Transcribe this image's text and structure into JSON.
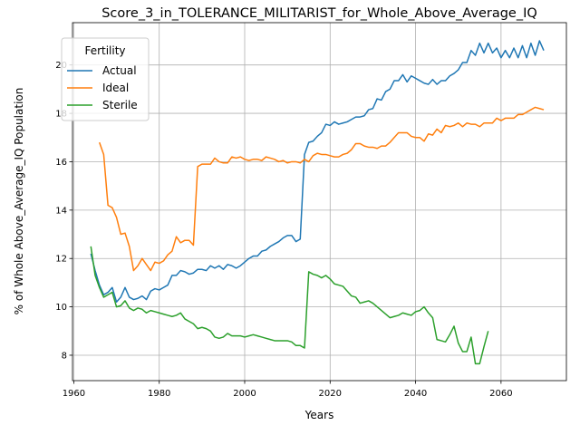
{
  "chart_data": {
    "type": "line",
    "title": "Score_3_in_TOLERANCE_MILITARIST_for_Whole_Above_Average_IQ",
    "xlabel": "Years",
    "ylabel": "% of Whole Above_Average_IQ Population",
    "xlim": [
      1959.7,
      2075.3
    ],
    "ylim": [
      6.95,
      21.75
    ],
    "xticks": [
      1960,
      1980,
      2000,
      2020,
      2040,
      2060
    ],
    "yticks": [
      8,
      10,
      12,
      14,
      16,
      18,
      20
    ],
    "grid": true,
    "legend": {
      "title": "Fertility",
      "placement": "top-left"
    },
    "series": [
      {
        "name": "Actual",
        "color": "#1f77b4",
        "x": [
          1964,
          1965,
          1966,
          1967,
          1968,
          1969,
          1970,
          1971,
          1972,
          1973,
          1974,
          1975,
          1976,
          1977,
          1978,
          1979,
          1980,
          1981,
          1982,
          1983,
          1984,
          1985,
          1986,
          1987,
          1988,
          1989,
          1990,
          1991,
          1992,
          1993,
          1994,
          1995,
          1996,
          1997,
          1998,
          1999,
          2000,
          2001,
          2002,
          2003,
          2004,
          2005,
          2006,
          2007,
          2008,
          2009,
          2010,
          2011,
          2012,
          2013,
          2014,
          2015,
          2016,
          2017,
          2018,
          2019,
          2020,
          2021,
          2022,
          2023,
          2024,
          2025,
          2026,
          2027,
          2028,
          2029,
          2030,
          2031,
          2032,
          2033,
          2034,
          2035,
          2036,
          2037,
          2038,
          2039,
          2040,
          2041,
          2042,
          2043,
          2044,
          2045,
          2046,
          2047,
          2048,
          2049,
          2050,
          2051,
          2052,
          2053,
          2054,
          2055,
          2056,
          2057,
          2058,
          2059,
          2060,
          2061,
          2062,
          2063,
          2064,
          2065,
          2066,
          2067,
          2068,
          2069,
          2070
        ],
        "y": [
          12.2,
          11.5,
          10.9,
          10.5,
          10.6,
          10.8,
          10.2,
          10.4,
          10.8,
          10.4,
          10.3,
          10.35,
          10.45,
          10.3,
          10.65,
          10.75,
          10.7,
          10.8,
          10.9,
          11.3,
          11.3,
          11.5,
          11.45,
          11.35,
          11.4,
          11.55,
          11.55,
          11.5,
          11.7,
          11.6,
          11.7,
          11.55,
          11.75,
          11.7,
          11.6,
          11.7,
          11.85,
          12.0,
          12.1,
          12.1,
          12.3,
          12.35,
          12.5,
          12.6,
          12.7,
          12.85,
          12.95,
          12.95,
          12.7,
          12.8,
          16.3,
          16.8,
          16.85,
          17.05,
          17.2,
          17.55,
          17.5,
          17.65,
          17.55,
          17.6,
          17.65,
          17.75,
          17.85,
          17.85,
          17.9,
          18.15,
          18.2,
          18.6,
          18.55,
          18.9,
          19.0,
          19.35,
          19.35,
          19.6,
          19.3,
          19.55,
          19.45,
          19.35,
          19.25,
          19.2,
          19.4,
          19.2,
          19.35,
          19.35,
          19.55,
          19.65,
          19.8,
          20.1,
          20.1,
          20.6,
          20.4,
          20.9,
          20.5,
          20.9,
          20.5,
          20.7,
          20.3,
          20.6,
          20.3,
          20.7,
          20.3,
          20.8,
          20.3,
          20.9,
          20.4,
          21.0,
          20.6
        ]
      },
      {
        "name": "Ideal",
        "color": "#ff7f0e",
        "x": [
          1966,
          1967,
          1968,
          1969,
          1970,
          1971,
          1972,
          1973,
          1974,
          1975,
          1976,
          1977,
          1978,
          1979,
          1980,
          1981,
          1982,
          1983,
          1984,
          1985,
          1986,
          1987,
          1988,
          1989,
          1990,
          1991,
          1992,
          1993,
          1994,
          1995,
          1996,
          1997,
          1998,
          1999,
          2000,
          2001,
          2002,
          2003,
          2004,
          2005,
          2006,
          2007,
          2008,
          2009,
          2010,
          2011,
          2012,
          2013,
          2014,
          2015,
          2016,
          2017,
          2018,
          2019,
          2020,
          2021,
          2022,
          2023,
          2024,
          2025,
          2026,
          2027,
          2028,
          2029,
          2030,
          2031,
          2032,
          2033,
          2034,
          2035,
          2036,
          2037,
          2038,
          2039,
          2040,
          2041,
          2042,
          2043,
          2044,
          2045,
          2046,
          2047,
          2048,
          2049,
          2050,
          2051,
          2052,
          2053,
          2054,
          2055,
          2056,
          2057,
          2058,
          2059,
          2060,
          2061,
          2062,
          2063,
          2064,
          2065,
          2066,
          2067,
          2068,
          2069,
          2070
        ],
        "y": [
          16.8,
          16.3,
          14.2,
          14.1,
          13.7,
          13.0,
          13.05,
          12.5,
          11.5,
          11.7,
          12.0,
          11.75,
          11.5,
          11.85,
          11.8,
          11.9,
          12.15,
          12.3,
          12.9,
          12.65,
          12.75,
          12.75,
          12.55,
          15.8,
          15.9,
          15.9,
          15.9,
          16.15,
          16.0,
          15.95,
          15.95,
          16.2,
          16.15,
          16.2,
          16.1,
          16.05,
          16.1,
          16.1,
          16.05,
          16.2,
          16.15,
          16.1,
          16.0,
          16.05,
          15.95,
          16.0,
          16.0,
          15.95,
          16.1,
          16.0,
          16.25,
          16.35,
          16.3,
          16.3,
          16.25,
          16.2,
          16.2,
          16.3,
          16.35,
          16.5,
          16.75,
          16.75,
          16.65,
          16.6,
          16.6,
          16.55,
          16.65,
          16.65,
          16.8,
          17.0,
          17.2,
          17.2,
          17.2,
          17.05,
          17.0,
          17.0,
          16.85,
          17.15,
          17.1,
          17.35,
          17.2,
          17.5,
          17.45,
          17.5,
          17.6,
          17.45,
          17.6,
          17.55,
          17.55,
          17.45,
          17.6,
          17.6,
          17.6,
          17.8,
          17.7,
          17.8,
          17.8,
          17.8,
          17.95,
          17.95,
          18.05,
          18.15,
          18.25,
          18.2,
          18.15
        ]
      },
      {
        "name": "Sterile",
        "color": "#2ca02c",
        "x": [
          1964,
          1965,
          1966,
          1967,
          1968,
          1969,
          1970,
          1971,
          1972,
          1973,
          1974,
          1975,
          1976,
          1977,
          1978,
          1979,
          1980,
          1981,
          1982,
          1983,
          1984,
          1985,
          1986,
          1987,
          1988,
          1989,
          1990,
          1991,
          1992,
          1993,
          1994,
          1995,
          1996,
          1997,
          1998,
          1999,
          2000,
          2001,
          2002,
          2003,
          2004,
          2005,
          2006,
          2007,
          2008,
          2009,
          2010,
          2011,
          2012,
          2013,
          2014,
          2015,
          2016,
          2017,
          2018,
          2019,
          2020,
          2021,
          2022,
          2023,
          2024,
          2025,
          2026,
          2027,
          2028,
          2029,
          2030,
          2031,
          2032,
          2033,
          2034,
          2035,
          2036,
          2037,
          2038,
          2039,
          2040,
          2041,
          2042,
          2043,
          2044,
          2045,
          2046,
          2047,
          2048,
          2049,
          2050,
          2051,
          2052,
          2053,
          2054,
          2055,
          2056,
          2057
        ],
        "y": [
          12.5,
          11.3,
          10.8,
          10.4,
          10.5,
          10.6,
          10.0,
          10.05,
          10.25,
          9.95,
          9.85,
          9.95,
          9.9,
          9.75,
          9.85,
          9.8,
          9.75,
          9.7,
          9.65,
          9.6,
          9.65,
          9.75,
          9.5,
          9.4,
          9.3,
          9.1,
          9.15,
          9.1,
          9.0,
          8.75,
          8.7,
          8.75,
          8.9,
          8.8,
          8.8,
          8.8,
          8.75,
          8.8,
          8.85,
          8.8,
          8.75,
          8.7,
          8.65,
          8.6,
          8.6,
          8.6,
          8.6,
          8.55,
          8.4,
          8.4,
          8.3,
          11.45,
          11.35,
          11.3,
          11.2,
          11.3,
          11.15,
          10.95,
          10.9,
          10.85,
          10.65,
          10.45,
          10.4,
          10.15,
          10.2,
          10.25,
          10.15,
          10.0,
          9.85,
          9.7,
          9.55,
          9.6,
          9.65,
          9.75,
          9.7,
          9.65,
          9.8,
          9.85,
          10.0,
          9.75,
          9.55,
          8.65,
          8.6,
          8.55,
          8.85,
          9.2,
          8.5,
          8.15,
          8.15,
          8.75,
          7.65,
          7.65,
          8.35,
          9.0
        ]
      }
    ]
  }
}
